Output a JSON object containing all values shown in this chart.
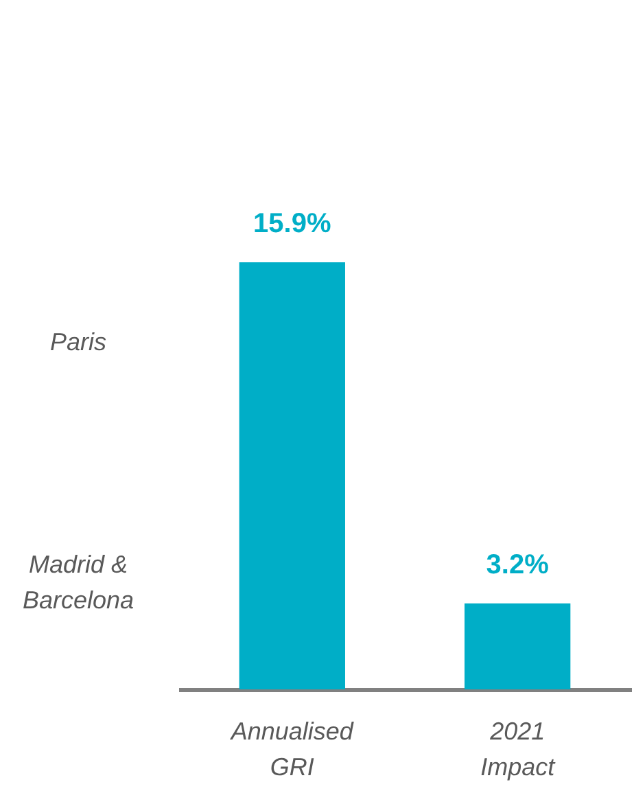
{
  "chart_data": {
    "type": "bar",
    "categories": [
      "Annualised GRI",
      "2021 Impact"
    ],
    "values": [
      15.9,
      3.2
    ],
    "value_labels": [
      "15.9%",
      "3.2%"
    ],
    "color": "#00aec7",
    "annotations": [
      "Paris",
      "Madrid & Barcelona"
    ]
  }
}
